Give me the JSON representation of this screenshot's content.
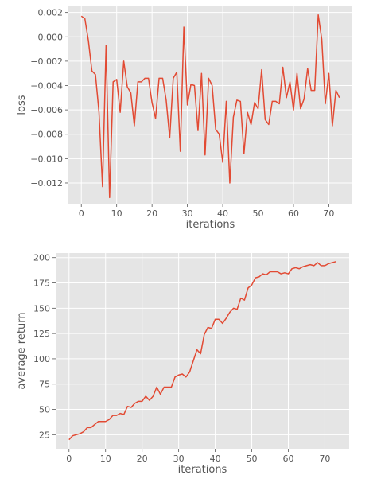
{
  "colors": {
    "background": "#ffffff",
    "plot_bg": "#e5e5e5",
    "grid": "#ffffff",
    "line": "#e24a33",
    "text": "#555555"
  },
  "chart_data": [
    {
      "type": "line",
      "xlabel": "iterations",
      "ylabel": "loss",
      "xlim": [
        -3.65,
        76.65
      ],
      "ylim": [
        -0.0137,
        0.0025
      ],
      "xticks": [
        0,
        10,
        20,
        30,
        40,
        50,
        60,
        70
      ],
      "yticks": [
        0.002,
        0.0,
        -0.002,
        -0.004,
        -0.006,
        -0.008,
        -0.01,
        -0.012
      ],
      "xtick_labels": [
        "0",
        "10",
        "20",
        "30",
        "40",
        "50",
        "60",
        "70"
      ],
      "ytick_labels": [
        "0.002",
        "0.000",
        "−0.002",
        "−0.004",
        "−0.006",
        "−0.008",
        "−0.010",
        "−0.012"
      ],
      "grid": true,
      "series": [
        {
          "x": [
            0,
            1,
            2,
            3,
            4,
            5,
            6,
            7,
            8,
            9,
            10,
            11,
            12,
            13,
            14,
            15,
            16,
            17,
            18,
            19,
            20,
            21,
            22,
            23,
            24,
            25,
            26,
            27,
            28,
            29,
            30,
            31,
            32,
            33,
            34,
            35,
            36,
            37,
            38,
            39,
            40,
            41,
            42,
            43,
            44,
            45,
            46,
            47,
            48,
            49,
            50,
            51,
            52,
            53,
            54,
            55,
            56,
            57,
            58,
            59,
            60,
            61,
            62,
            63,
            64,
            65,
            66,
            67,
            68,
            69,
            70,
            71,
            72,
            73
          ],
          "y": [
            0.0017,
            0.0015,
            -0.0003,
            -0.0028,
            -0.0031,
            -0.0062,
            -0.0123,
            -0.0007,
            -0.0132,
            -0.0037,
            -0.0035,
            -0.0062,
            -0.002,
            -0.0041,
            -0.0046,
            -0.0073,
            -0.0037,
            -0.0037,
            -0.0034,
            -0.0034,
            -0.0054,
            -0.0067,
            -0.0034,
            -0.0034,
            -0.0052,
            -0.0083,
            -0.0034,
            -0.0029,
            -0.0094,
            0.0008,
            -0.0056,
            -0.0039,
            -0.004,
            -0.0077,
            -0.003,
            -0.0097,
            -0.0034,
            -0.004,
            -0.0076,
            -0.008,
            -0.0103,
            -0.0053,
            -0.012,
            -0.0066,
            -0.0052,
            -0.0053,
            -0.0096,
            -0.0062,
            -0.0072,
            -0.0054,
            -0.0059,
            -0.0027,
            -0.0068,
            -0.0072,
            -0.0053,
            -0.0053,
            -0.0055,
            -0.0025,
            -0.005,
            -0.0037,
            -0.006,
            -0.003,
            -0.0059,
            -0.0051,
            -0.0026,
            -0.0044,
            -0.0044,
            0.0018,
            -0.0002,
            -0.0055,
            -0.003,
            -0.0073,
            -0.0044,
            -0.005
          ]
        }
      ]
    },
    {
      "type": "line",
      "xlabel": "iterations",
      "ylabel": "average return",
      "xlim": [
        -3.65,
        76.65
      ],
      "ylim": [
        11.1,
        204.5
      ],
      "xticks": [
        0,
        10,
        20,
        30,
        40,
        50,
        60,
        70
      ],
      "yticks": [
        25,
        50,
        75,
        100,
        125,
        150,
        175,
        200
      ],
      "xtick_labels": [
        "0",
        "10",
        "20",
        "30",
        "40",
        "50",
        "60",
        "70"
      ],
      "ytick_labels": [
        "25",
        "50",
        "75",
        "100",
        "125",
        "150",
        "175",
        "200"
      ],
      "grid": true,
      "series": [
        {
          "x": [
            0,
            1,
            2,
            3,
            4,
            5,
            6,
            7,
            8,
            9,
            10,
            11,
            12,
            13,
            14,
            15,
            16,
            17,
            18,
            19,
            20,
            21,
            22,
            23,
            24,
            25,
            26,
            27,
            28,
            29,
            30,
            31,
            32,
            33,
            34,
            35,
            36,
            37,
            38,
            39,
            40,
            41,
            42,
            43,
            44,
            45,
            46,
            47,
            48,
            49,
            50,
            51,
            52,
            53,
            54,
            55,
            56,
            57,
            58,
            59,
            60,
            61,
            62,
            63,
            64,
            65,
            66,
            67,
            68,
            69,
            70,
            71,
            72,
            73
          ],
          "y": [
            20,
            24,
            25,
            26,
            28,
            32,
            32,
            35,
            38,
            38,
            38,
            40,
            44,
            44,
            46,
            45,
            53,
            52,
            56,
            58,
            58,
            63,
            59,
            63,
            72,
            65,
            72,
            72,
            72,
            82,
            84,
            85,
            82,
            87,
            98,
            109,
            105,
            124,
            131,
            130,
            139,
            139,
            135,
            140,
            146,
            150,
            149,
            160,
            158,
            170,
            173,
            180,
            181,
            184,
            183,
            186,
            186,
            186,
            184,
            185,
            184,
            189,
            190,
            189,
            191,
            192,
            193,
            192,
            195,
            192,
            192,
            194,
            195,
            196
          ]
        }
      ]
    }
  ]
}
